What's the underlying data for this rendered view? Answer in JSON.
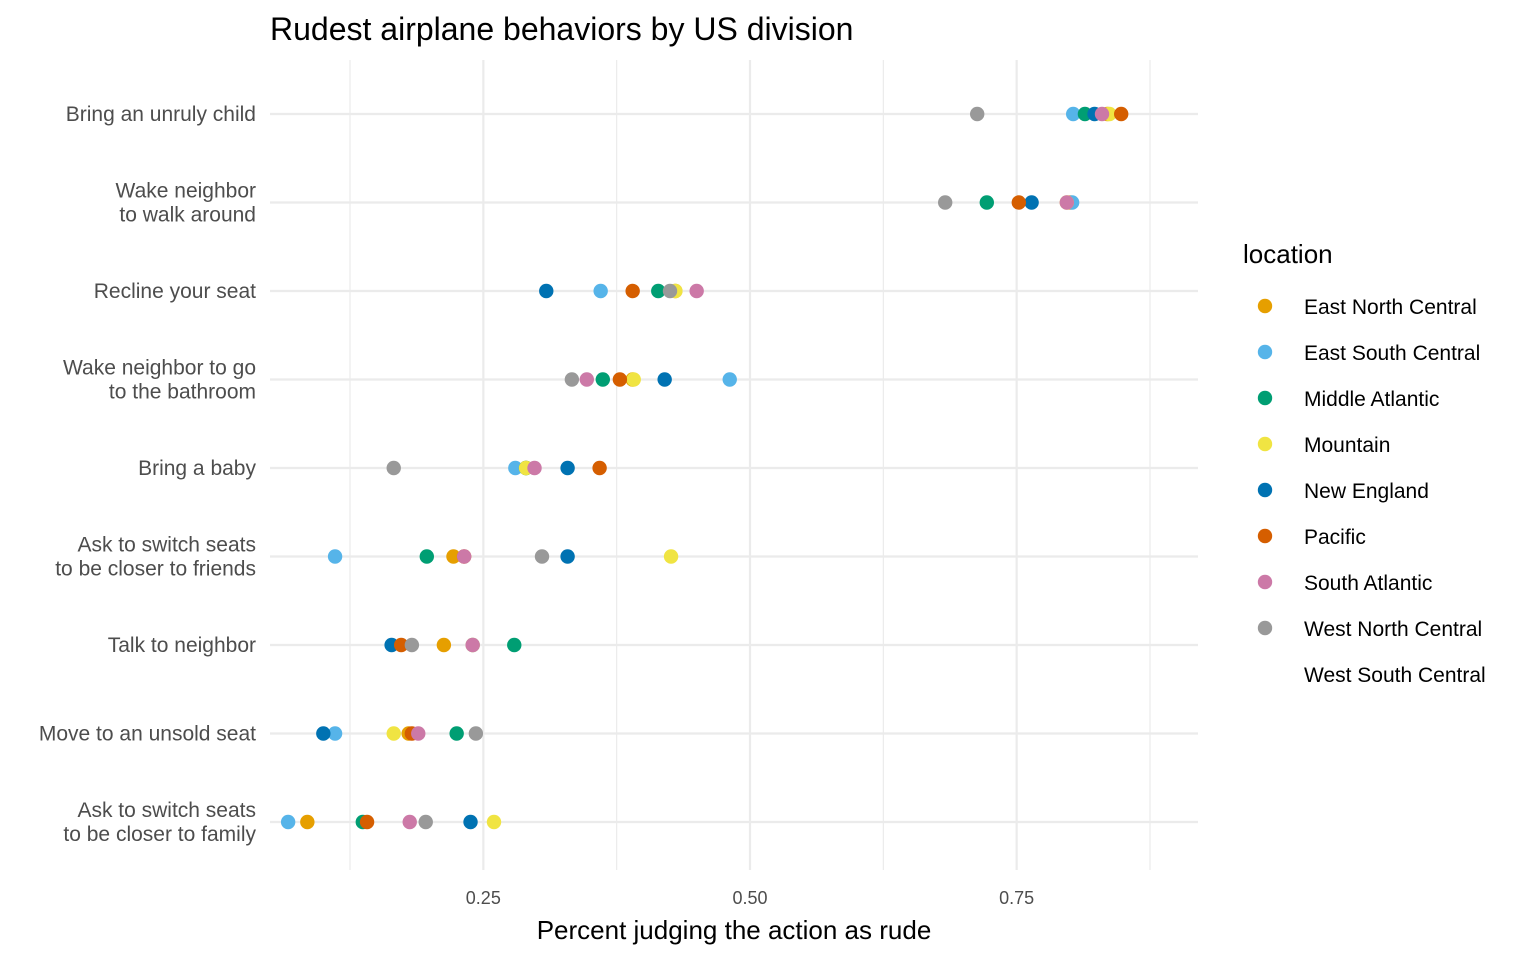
{
  "chart_data": {
    "type": "scatter",
    "title": "Rudest airplane behaviors by US division",
    "xlabel": "Percent judging the action as rude",
    "ylabel": "",
    "xlim": [
      0.05,
      0.92
    ],
    "xticks": [
      0.25,
      0.5,
      0.75
    ],
    "xtick_labels": [
      "0.25",
      "0.50",
      "0.75"
    ],
    "grid": true,
    "legend": {
      "title": "location",
      "placement": "right"
    },
    "categories": [
      "Bring an unruly child",
      "Wake neighbor \nto walk around",
      "Recline your seat",
      "Wake neighbor to go \nto the bathroom",
      "Bring a baby",
      "Ask to switch seats \nto be closer to friends",
      "Talk to neighbor",
      "Move to an unsold seat",
      "Ask to switch seats \nto be closer to family"
    ],
    "series": [
      {
        "name": "East North Central",
        "color": "#E69F00",
        "values": [
          0.835,
          0.8,
          0.43,
          0.39,
          0.29,
          0.222,
          0.213,
          0.18,
          0.085
        ]
      },
      {
        "name": "East South Central",
        "color": "#56B4E9",
        "values": [
          0.803,
          0.802,
          0.36,
          0.481,
          0.28,
          0.111,
          0.24,
          0.111,
          0.067
        ]
      },
      {
        "name": "Middle Atlantic",
        "color": "#009E73",
        "values": [
          0.814,
          0.722,
          0.414,
          0.362,
          0.29,
          0.197,
          0.279,
          0.225,
          0.137
        ]
      },
      {
        "name": "Mountain",
        "color": "#F0E442",
        "values": [
          0.837,
          0.797,
          0.43,
          0.391,
          0.29,
          0.426,
          0.24,
          0.166,
          0.26
        ]
      },
      {
        "name": "New England",
        "color": "#0072B2",
        "values": [
          0.823,
          0.764,
          0.309,
          0.42,
          0.329,
          0.329,
          0.164,
          0.1,
          0.238
        ]
      },
      {
        "name": "Pacific",
        "color": "#D55E00",
        "values": [
          0.848,
          0.752,
          0.39,
          0.378,
          0.359,
          0.232,
          0.173,
          0.183,
          0.141
        ]
      },
      {
        "name": "South Atlantic",
        "color": "#CC79A7",
        "values": [
          0.83,
          0.797,
          0.45,
          0.347,
          0.298,
          0.232,
          0.24,
          0.189,
          0.181
        ]
      },
      {
        "name": "West North Central",
        "color": "#999999",
        "values": [
          0.713,
          0.683,
          0.425,
          0.333,
          0.166,
          0.305,
          0.183,
          0.243,
          0.196
        ]
      },
      {
        "name": "West South Central",
        "color": "#FFFFFF",
        "values": []
      }
    ]
  }
}
